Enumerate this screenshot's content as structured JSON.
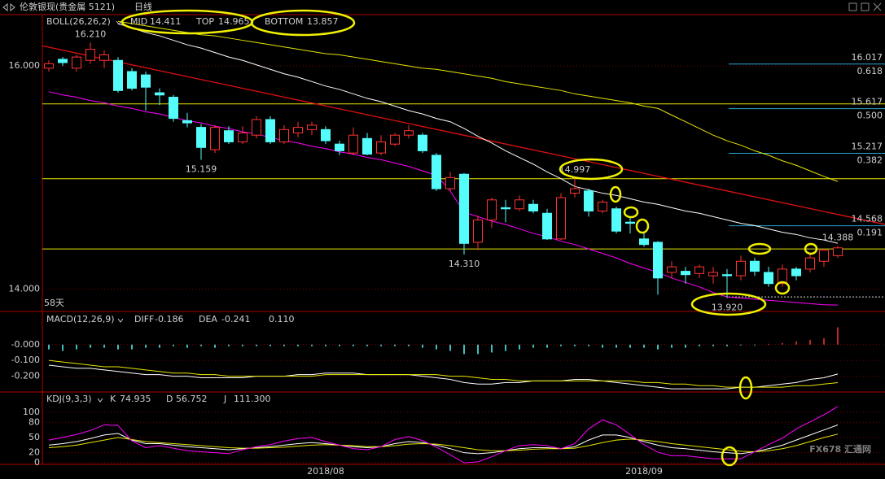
{
  "header": {
    "instrument": "伦敦银现(贵金属 5121)",
    "period": "日线"
  },
  "watermark": "FX678 汇通网",
  "chart_data": [
    {
      "type": "candlestick",
      "indicator": "BOLL(26,26,2)",
      "categories": [
        null,
        null,
        null,
        null,
        null,
        null,
        null,
        null,
        null,
        null,
        null,
        null,
        null,
        null,
        null,
        null,
        null,
        null,
        null,
        null,
        "2018/08",
        null,
        null,
        null,
        null,
        null,
        null,
        null,
        null,
        null,
        null,
        null,
        null,
        null,
        null,
        null,
        null,
        null,
        null,
        null,
        null,
        null,
        null,
        "2018/09",
        null,
        null,
        null,
        null,
        null,
        null,
        null,
        null,
        null,
        null,
        null,
        null,
        null,
        null
      ],
      "open": [
        15.98,
        16.06,
        15.98,
        16.05,
        16.05,
        16.05,
        15.95,
        15.92,
        15.76,
        15.72,
        15.51,
        15.45,
        15.25,
        15.42,
        15.32,
        15.38,
        15.52,
        15.32,
        15.4,
        15.43,
        15.43,
        15.3,
        15.22,
        15.35,
        15.22,
        15.3,
        15.38,
        15.38,
        15.2,
        14.9,
        15.03,
        14.42,
        14.62,
        14.73,
        14.72,
        14.76,
        14.68,
        14.45,
        14.86,
        14.88,
        14.7,
        14.72,
        14.6,
        14.45,
        14.42,
        14.15,
        14.16,
        14.14,
        14.12,
        14.13,
        14.12,
        14.25,
        14.15,
        14.05,
        14.18,
        14.18,
        14.25,
        14.3
      ],
      "high": [
        16.05,
        16.08,
        16.1,
        16.21,
        16.14,
        16.08,
        15.98,
        15.95,
        15.8,
        15.74,
        15.58,
        15.48,
        15.47,
        15.46,
        15.46,
        15.55,
        15.55,
        15.47,
        15.5,
        15.5,
        15.46,
        15.33,
        15.45,
        15.4,
        15.38,
        15.4,
        15.47,
        15.4,
        15.22,
        15.05,
        15.04,
        14.66,
        14.82,
        14.8,
        14.84,
        14.8,
        14.72,
        14.86,
        14.997,
        14.9,
        14.8,
        14.74,
        14.65,
        14.5,
        14.43,
        14.25,
        14.2,
        14.22,
        14.2,
        14.18,
        14.3,
        14.28,
        14.2,
        14.22,
        14.2,
        14.32,
        14.36,
        14.388
      ],
      "low": [
        15.95,
        16.0,
        15.95,
        16.02,
        15.98,
        15.76,
        15.78,
        15.6,
        15.65,
        15.5,
        15.45,
        15.159,
        15.22,
        15.3,
        15.3,
        15.35,
        15.3,
        15.3,
        15.36,
        15.38,
        15.3,
        15.2,
        15.2,
        15.2,
        15.2,
        15.28,
        15.35,
        15.22,
        14.88,
        14.88,
        14.31,
        14.35,
        14.55,
        14.6,
        14.7,
        14.68,
        14.44,
        14.44,
        14.82,
        14.65,
        14.68,
        14.5,
        14.5,
        14.38,
        13.95,
        14.1,
        14.05,
        14.1,
        14.05,
        13.92,
        14.08,
        14.12,
        14.02,
        14.02,
        14.08,
        14.15,
        14.2,
        14.28
      ],
      "close": [
        16.02,
        16.03,
        16.08,
        16.15,
        16.1,
        15.78,
        15.8,
        15.81,
        15.74,
        15.53,
        15.49,
        15.27,
        15.45,
        15.32,
        15.4,
        15.52,
        15.32,
        15.43,
        15.45,
        15.47,
        15.33,
        15.24,
        15.38,
        15.21,
        15.32,
        15.38,
        15.42,
        15.24,
        14.9,
        15.0,
        14.41,
        14.62,
        14.8,
        14.72,
        14.8,
        14.7,
        14.45,
        14.82,
        14.9,
        14.7,
        14.78,
        14.52,
        14.59,
        14.4,
        14.1,
        14.2,
        14.13,
        14.2,
        14.15,
        14.12,
        14.25,
        14.16,
        14.05,
        14.18,
        14.12,
        14.28,
        14.35,
        14.37
      ],
      "up_color": "#ff3232",
      "down_color": "#54fcfc",
      "series": [
        {
          "name": "MID",
          "color": "#ffffff",
          "last_value": 14.411,
          "values": [
            null,
            null,
            null,
            null,
            null,
            16.38,
            16.34,
            16.3,
            16.27,
            16.23,
            16.19,
            16.16,
            16.12,
            16.08,
            16.05,
            16.01,
            15.97,
            15.93,
            15.9,
            15.86,
            15.82,
            15.79,
            15.75,
            15.71,
            15.68,
            15.64,
            15.6,
            15.57,
            15.53,
            15.5,
            15.44,
            15.37,
            15.31,
            15.24,
            15.18,
            15.12,
            15.05,
            14.99,
            14.92,
            14.89,
            14.86,
            14.84,
            14.81,
            14.78,
            14.76,
            14.73,
            14.7,
            14.68,
            14.65,
            14.62,
            14.59,
            14.57,
            14.54,
            14.51,
            14.49,
            14.46,
            14.44,
            14.411
          ]
        },
        {
          "name": "TOP",
          "color": "#e6e600",
          "last_value": 14.965,
          "values": [
            null,
            null,
            null,
            null,
            null,
            16.4,
            16.38,
            16.36,
            16.34,
            16.32,
            16.3,
            16.28,
            16.27,
            16.25,
            16.23,
            16.21,
            16.19,
            16.17,
            16.15,
            16.13,
            16.11,
            16.1,
            16.08,
            16.06,
            16.04,
            16.02,
            16.0,
            15.98,
            15.97,
            15.95,
            15.93,
            15.91,
            15.89,
            15.86,
            15.84,
            15.82,
            15.8,
            15.78,
            15.75,
            15.73,
            15.71,
            15.69,
            15.67,
            15.64,
            15.62,
            15.56,
            15.5,
            15.44,
            15.38,
            15.33,
            15.29,
            15.24,
            15.2,
            15.15,
            15.11,
            15.06,
            15.01,
            14.965
          ]
        },
        {
          "name": "BOTTOM",
          "color": "#ff00ff",
          "last_value": 13.857,
          "values": [
            15.77,
            15.74,
            15.72,
            15.69,
            15.67,
            15.64,
            15.62,
            15.59,
            15.57,
            15.54,
            15.51,
            15.49,
            15.46,
            15.44,
            15.41,
            15.39,
            15.36,
            15.33,
            15.31,
            15.28,
            15.26,
            15.23,
            15.21,
            15.18,
            15.16,
            15.13,
            15.1,
            15.06,
            15.02,
            14.88,
            14.69,
            14.65,
            14.61,
            14.58,
            14.54,
            14.5,
            14.47,
            14.43,
            14.4,
            14.36,
            14.32,
            14.28,
            14.23,
            14.19,
            14.15,
            14.1,
            14.06,
            14.02,
            13.97,
            13.93,
            13.92,
            13.91,
            13.9,
            13.89,
            13.88,
            13.87,
            13.86,
            13.857
          ]
        }
      ],
      "ylim": [
        13.8,
        16.46
      ],
      "yticks": [
        {
          "value": 16,
          "label": "16.000"
        },
        {
          "value": 14,
          "label": "14.000"
        }
      ],
      "extreme_labels": [
        {
          "value": 16.21,
          "label": "16.210"
        },
        {
          "value": 15.159,
          "label": "15.159"
        },
        {
          "value": 14.31,
          "label": "14.310"
        },
        {
          "value": 14.997,
          "label": "14.997"
        },
        {
          "value": 13.92,
          "label": "13.920"
        },
        {
          "value": 14.388,
          "label": "14.388"
        }
      ],
      "fib_levels": [
        {
          "price": 16.017,
          "ratio": "0.618"
        },
        {
          "price": 15.617,
          "ratio": "0.500"
        },
        {
          "price": 15.217,
          "ratio": "0.382"
        },
        {
          "price": 14.568,
          "ratio": "0.191"
        }
      ],
      "horizontal_lines": [
        15.66,
        14.99,
        14.36
      ],
      "trend_line": [
        16.18,
        14.58
      ],
      "dotted_line": 13.93,
      "days_label": "58天"
    },
    {
      "type": "macd",
      "indicator": "MACD(12,26,9)",
      "series": [
        {
          "name": "DIFF",
          "type": "line",
          "color": "#ffffff",
          "last_value": -0.186,
          "values": [
            -0.13,
            -0.14,
            -0.15,
            -0.15,
            -0.16,
            -0.17,
            -0.18,
            -0.19,
            -0.19,
            -0.2,
            -0.2,
            -0.21,
            -0.21,
            -0.21,
            -0.21,
            -0.2,
            -0.2,
            -0.2,
            -0.19,
            -0.19,
            -0.18,
            -0.18,
            -0.18,
            -0.19,
            -0.19,
            -0.19,
            -0.19,
            -0.2,
            -0.21,
            -0.22,
            -0.24,
            -0.25,
            -0.25,
            -0.24,
            -0.24,
            -0.23,
            -0.23,
            -0.23,
            -0.22,
            -0.22,
            -0.23,
            -0.24,
            -0.25,
            -0.26,
            -0.27,
            -0.28,
            -0.28,
            -0.28,
            -0.28,
            -0.28,
            -0.27,
            -0.27,
            -0.26,
            -0.25,
            -0.24,
            -0.22,
            -0.21,
            -0.186
          ]
        },
        {
          "name": "DEA",
          "type": "line",
          "color": "#e6e600",
          "last_value": -0.241,
          "values": [
            -0.1,
            -0.11,
            -0.12,
            -0.13,
            -0.14,
            -0.14,
            -0.15,
            -0.16,
            -0.17,
            -0.18,
            -0.18,
            -0.19,
            -0.19,
            -0.2,
            -0.2,
            -0.2,
            -0.2,
            -0.2,
            -0.2,
            -0.2,
            -0.19,
            -0.19,
            -0.19,
            -0.19,
            -0.19,
            -0.19,
            -0.19,
            -0.19,
            -0.19,
            -0.2,
            -0.2,
            -0.21,
            -0.22,
            -0.22,
            -0.23,
            -0.23,
            -0.23,
            -0.23,
            -0.23,
            -0.23,
            -0.23,
            -0.23,
            -0.23,
            -0.24,
            -0.24,
            -0.25,
            -0.25,
            -0.26,
            -0.26,
            -0.27,
            -0.27,
            -0.27,
            -0.27,
            -0.27,
            -0.26,
            -0.26,
            -0.25,
            -0.241
          ]
        },
        {
          "type": "bar",
          "up_color": "#ff3232",
          "down_color": "#54fcfc",
          "last_value": {
            "value": 0.11,
            "label": "0.110"
          },
          "values": [
            -0.03,
            -0.04,
            -0.03,
            -0.02,
            -0.02,
            -0.03,
            -0.03,
            -0.02,
            -0.02,
            -0.01,
            -0.02,
            -0.01,
            -0.02,
            -0.01,
            -0.01,
            -0.01,
            -0.01,
            -0.01,
            -0.01,
            -0.01,
            -0.01,
            -0.01,
            -0.01,
            -0.01,
            -0.01,
            -0.01,
            -0.01,
            -0.02,
            -0.03,
            -0.04,
            -0.06,
            -0.06,
            -0.05,
            -0.04,
            -0.03,
            -0.02,
            -0.02,
            -0.01,
            -0.01,
            -0.01,
            -0.02,
            -0.02,
            -0.02,
            -0.02,
            -0.03,
            -0.02,
            -0.02,
            -0.01,
            -0.01,
            -0.01,
            -0.005,
            -0.005,
            0.005,
            0.01,
            0.02,
            0.03,
            0.04,
            0.11
          ]
        }
      ],
      "ylim": [
        -0.3,
        0.21
      ],
      "yticks": [
        {
          "value": 0,
          "label": "-0.000"
        },
        {
          "value": -0.1,
          "label": "-0.100"
        },
        {
          "value": -0.2,
          "label": "-0.200"
        }
      ]
    },
    {
      "type": "kdj",
      "indicator": "KDJ(9,3,3)",
      "series": [
        {
          "name": "K",
          "type": "line",
          "color": "#ffffff",
          "last_value": 74.935,
          "values": [
            35,
            38,
            42,
            48,
            55,
            58,
            45,
            38,
            38,
            35,
            32,
            30,
            28,
            26,
            28,
            30,
            32,
            35,
            38,
            40,
            38,
            35,
            32,
            30,
            32,
            38,
            42,
            40,
            35,
            28,
            20,
            18,
            20,
            24,
            28,
            30,
            30,
            28,
            32,
            45,
            55,
            55,
            50,
            42,
            35,
            30,
            28,
            25,
            22,
            20,
            18,
            22,
            28,
            35,
            45,
            55,
            65,
            74.935
          ]
        },
        {
          "name": "D",
          "type": "line",
          "color": "#e6e600",
          "last_value": 56.752,
          "values": [
            30,
            32,
            35,
            40,
            45,
            50,
            46,
            42,
            40,
            38,
            36,
            34,
            32,
            30,
            29,
            29,
            30,
            31,
            33,
            35,
            36,
            35,
            34,
            32,
            32,
            34,
            37,
            38,
            37,
            34,
            30,
            26,
            24,
            24,
            25,
            27,
            28,
            28,
            29,
            34,
            40,
            45,
            47,
            45,
            42,
            38,
            35,
            32,
            29,
            26,
            23,
            22,
            24,
            28,
            34,
            42,
            50,
            56.752
          ]
        },
        {
          "name": "J",
          "type": "line",
          "color": "#ff00ff",
          "last_value": {
            "value": 111.3,
            "label": "111.300"
          },
          "values": [
            45,
            50,
            56,
            64,
            75,
            74,
            43,
            30,
            34,
            29,
            24,
            22,
            20,
            18,
            26,
            32,
            36,
            43,
            48,
            50,
            42,
            35,
            28,
            26,
            32,
            46,
            52,
            44,
            31,
            16,
            0,
            2,
            12,
            24,
            34,
            36,
            34,
            28,
            38,
            67,
            85,
            75,
            56,
            36,
            21,
            14,
            14,
            11,
            8,
            8,
            8,
            22,
            36,
            49,
            67,
            81,
            95,
            111.3
          ]
        }
      ],
      "ylim": [
        -3,
        140
      ],
      "yticks": [
        100,
        80,
        50,
        20,
        0
      ]
    }
  ]
}
